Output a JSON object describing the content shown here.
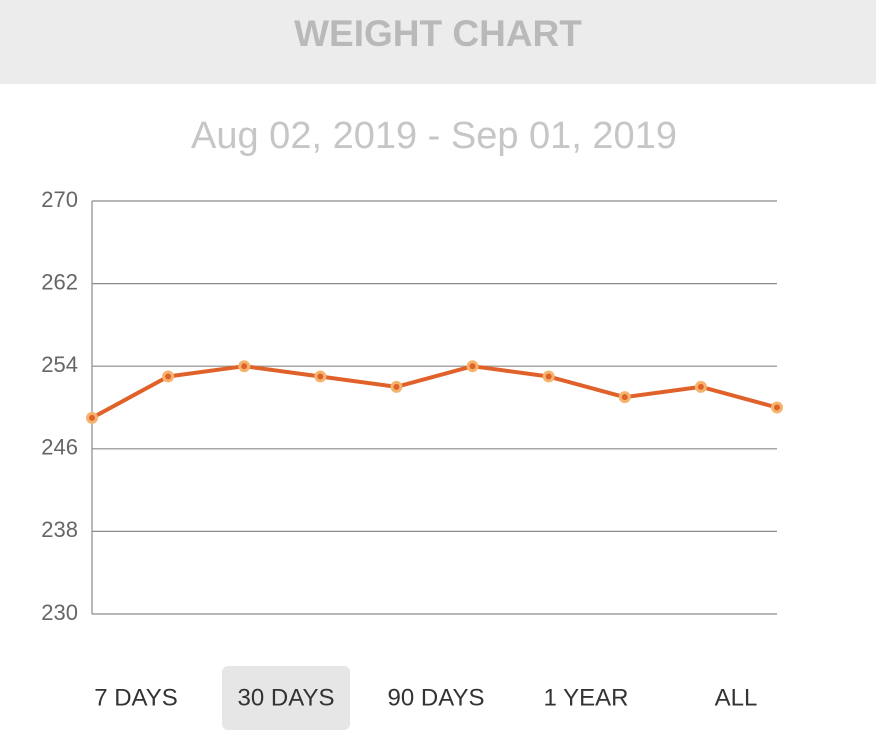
{
  "header": {
    "title": "WEIGHT CHART"
  },
  "chart_data": {
    "type": "line",
    "subtitle": "Aug 02, 2019 - Sep 01, 2019",
    "categories": [
      null,
      null,
      null,
      null,
      null,
      null,
      null,
      null,
      null,
      null
    ],
    "series": [
      {
        "color": "#e0622a",
        "marker_color": "#f5b46e",
        "values": [
          249,
          253,
          254,
          253,
          252,
          254,
          253,
          251,
          252,
          250
        ]
      }
    ],
    "ylim": [
      230,
      270
    ],
    "yticks": [
      230,
      238,
      246,
      254,
      262,
      270
    ],
    "grid": true
  },
  "tabs": {
    "items": [
      "7 DAYS",
      "30 DAYS",
      "90 DAYS",
      "1 YEAR",
      "ALL"
    ],
    "selected": 1
  }
}
